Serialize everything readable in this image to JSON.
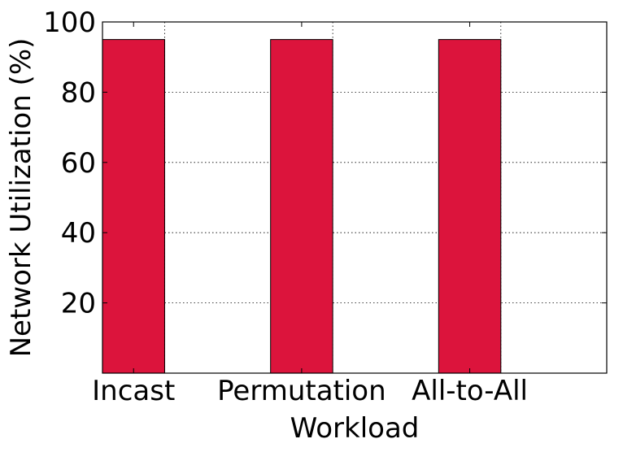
{
  "chart_data": {
    "type": "bar",
    "categories": [
      "Incast",
      "Permutation",
      "All-to-All"
    ],
    "values": [
      95,
      95,
      95
    ],
    "xlabel": "Workload",
    "ylabel": "Network Utilization (%)",
    "ylim": [
      0,
      100
    ],
    "yticks": [
      "20",
      "40",
      "60",
      "80",
      "100"
    ],
    "grid": true,
    "bar_color": "#dc143c"
  }
}
